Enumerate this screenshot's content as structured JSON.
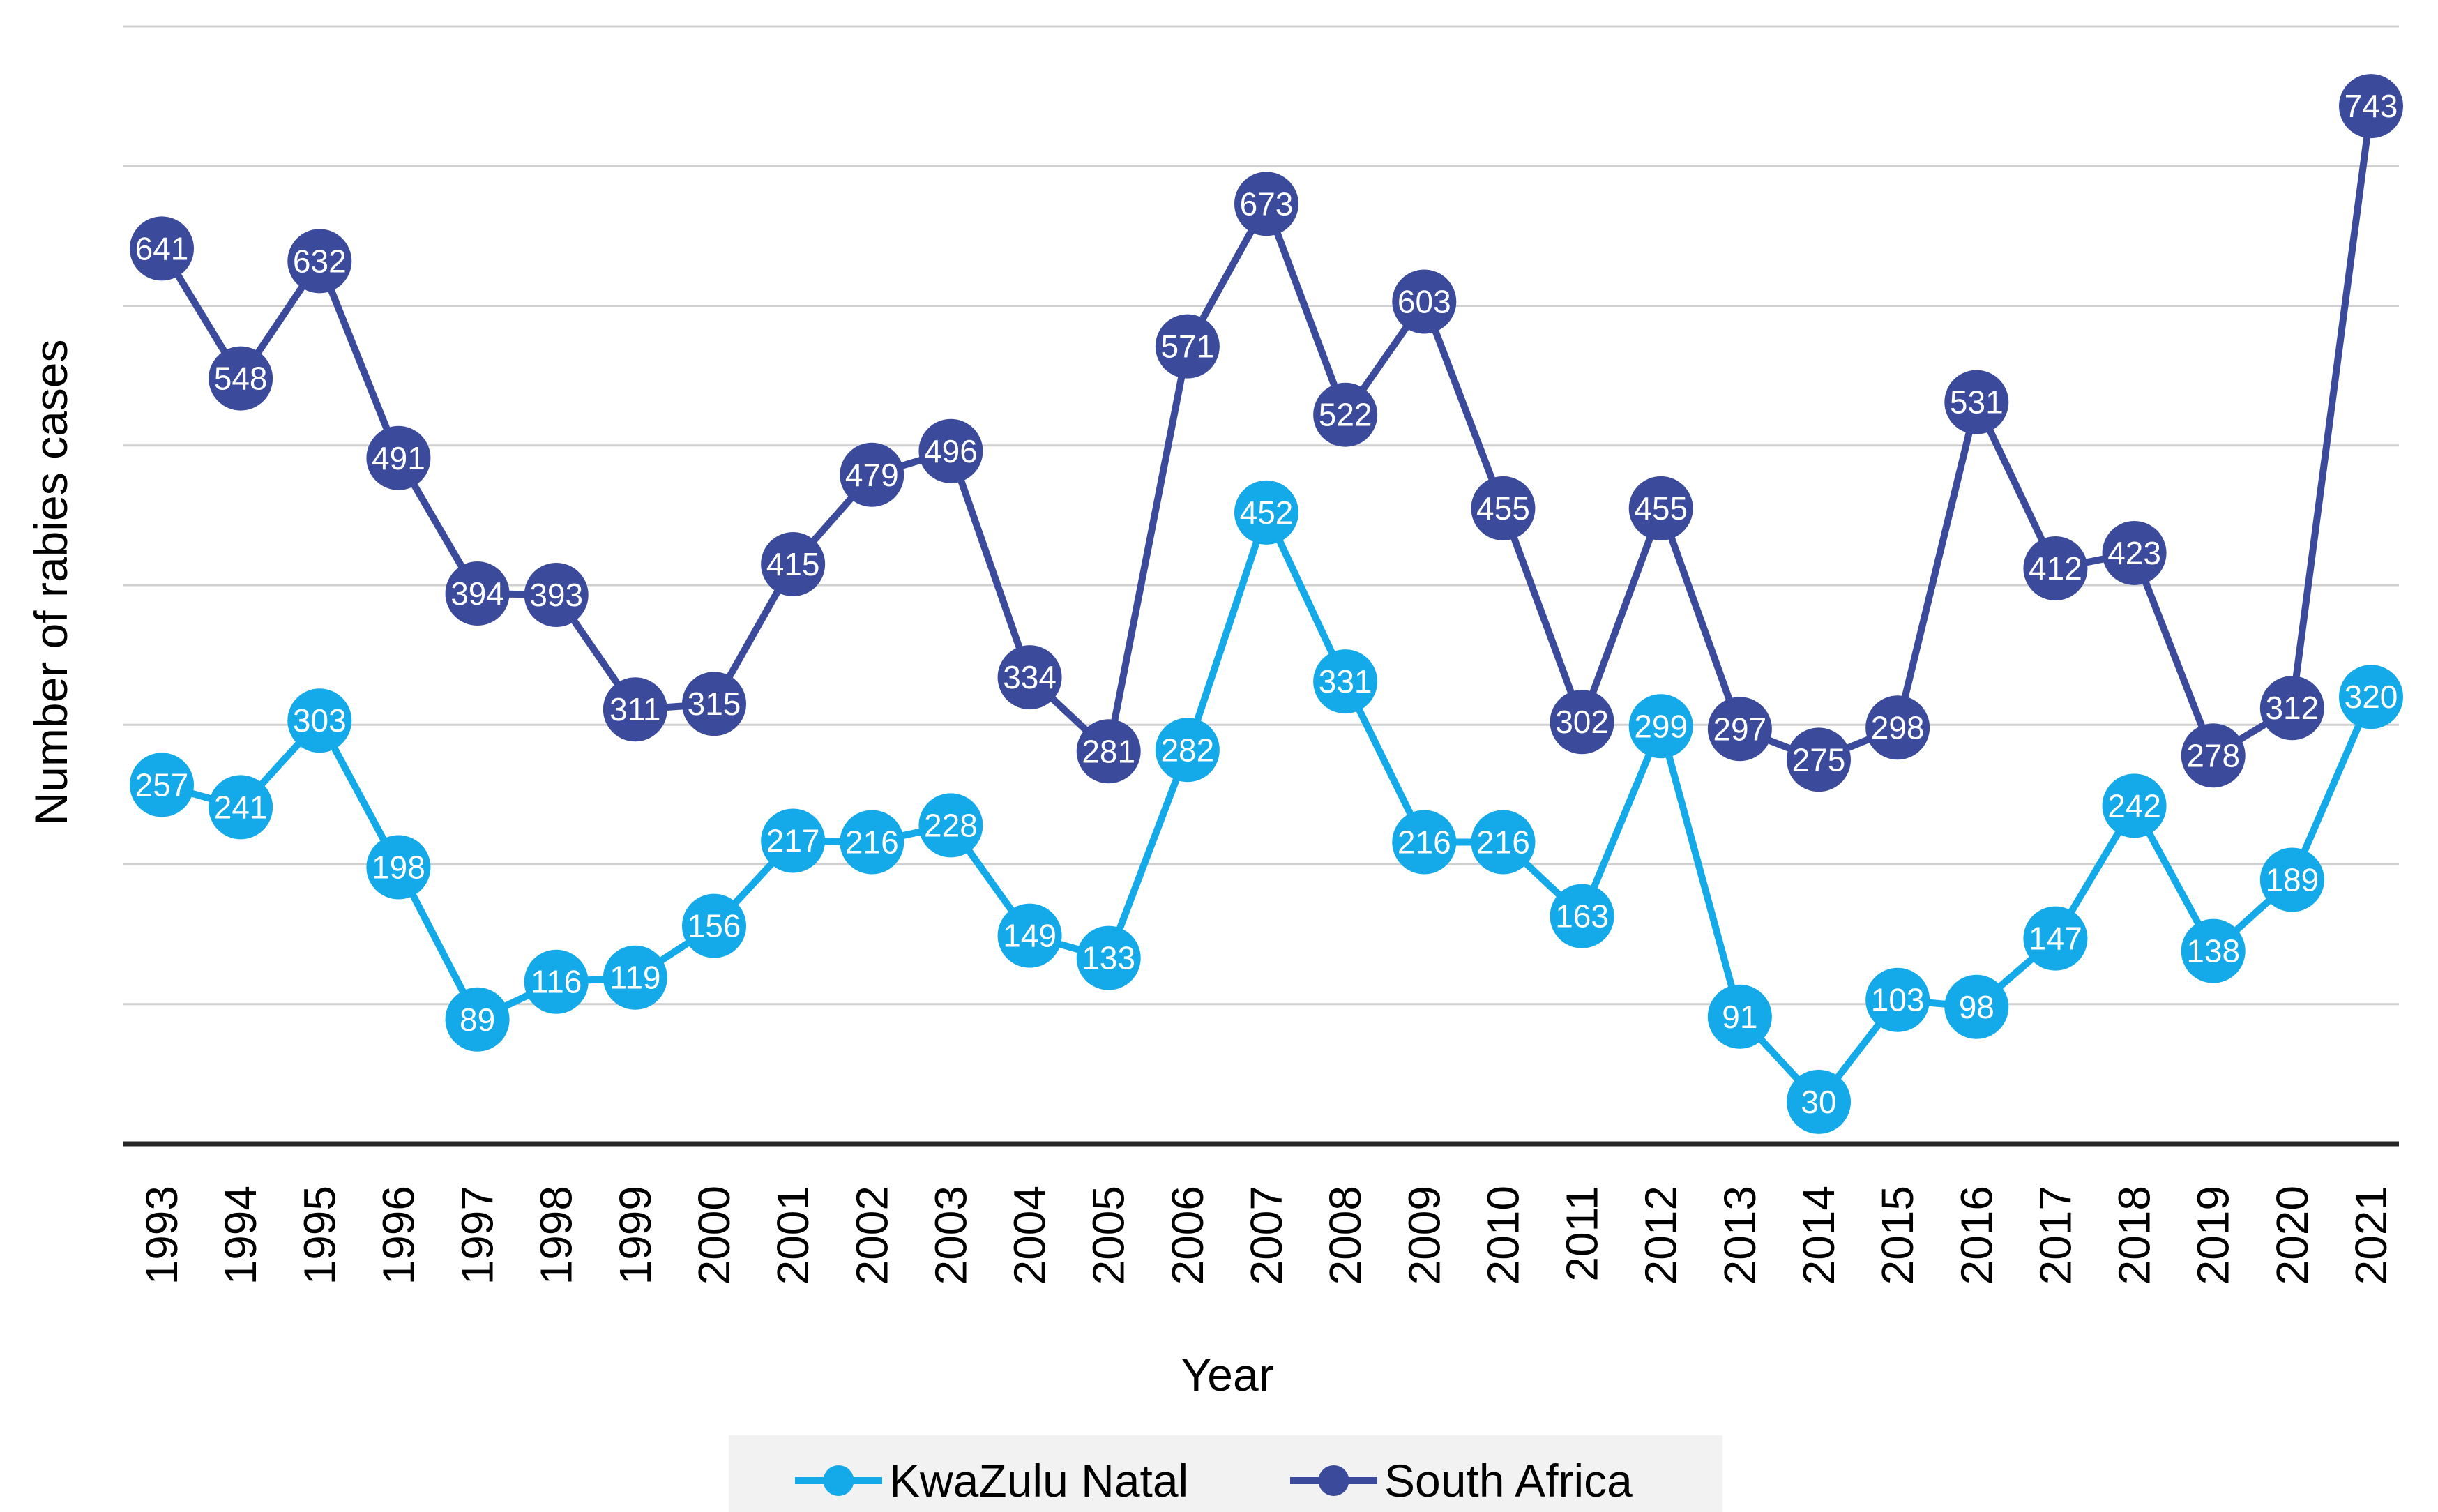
{
  "chart_data": {
    "type": "line",
    "title": "",
    "xlabel": "Year",
    "ylabel": "Number of rabies cases",
    "ylim": [
      0,
      800
    ],
    "grid": true,
    "y_ticks_shown": false,
    "legend_position": "bottom",
    "categories": [
      "1993",
      "1994",
      "1995",
      "1996",
      "1997",
      "1998",
      "1999",
      "2000",
      "2001",
      "2002",
      "2003",
      "2004",
      "2005",
      "2006",
      "2007",
      "2008",
      "2009",
      "2010",
      "2011",
      "2012",
      "2013",
      "2014",
      "2015",
      "2016",
      "2017",
      "2018",
      "2019",
      "2020",
      "2021"
    ],
    "series": [
      {
        "name": "KwaZulu Natal",
        "color": "#14a9e8",
        "values": [
          257,
          241,
          303,
          198,
          89,
          116,
          119,
          156,
          217,
          216,
          228,
          149,
          133,
          282,
          452,
          331,
          216,
          216,
          163,
          299,
          91,
          30,
          103,
          98,
          147,
          242,
          138,
          189,
          320
        ]
      },
      {
        "name": "South Africa",
        "color": "#3c4a9c",
        "values": [
          641,
          548,
          632,
          491,
          394,
          393,
          311,
          315,
          415,
          479,
          496,
          334,
          281,
          571,
          673,
          522,
          603,
          455,
          302,
          455,
          297,
          275,
          298,
          531,
          412,
          423,
          278,
          312,
          743
        ]
      }
    ]
  }
}
